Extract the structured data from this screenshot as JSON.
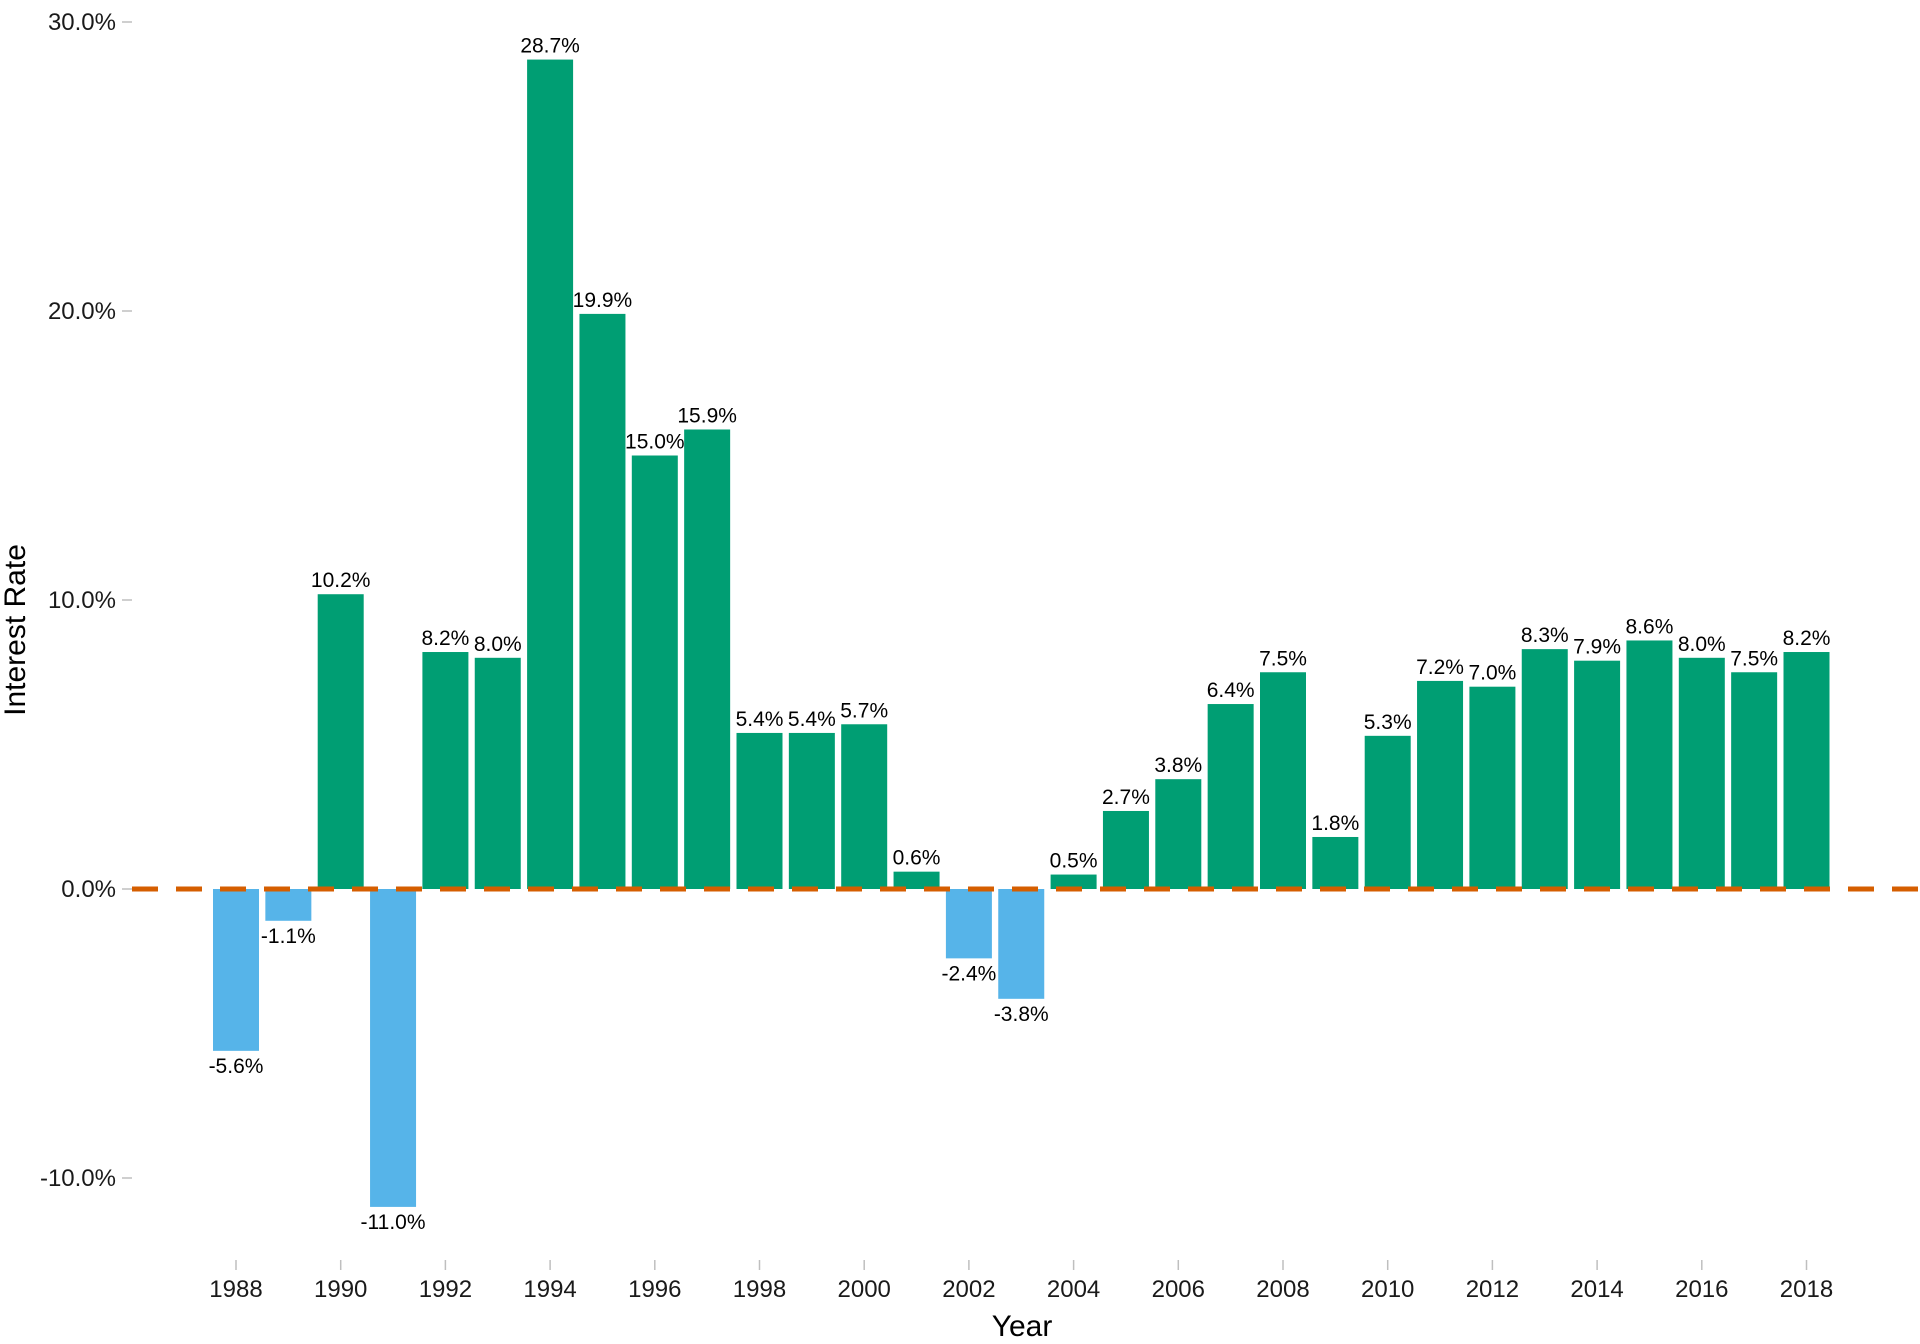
{
  "chart_data": {
    "type": "bar",
    "title": "",
    "xlabel": "Year",
    "ylabel": "Interest Rate",
    "ylim": [
      -13,
      30
    ],
    "yticks": [
      -10,
      0,
      10,
      20,
      30
    ],
    "ytick_labels": [
      "-10.0%",
      "0.0%",
      "10.0%",
      "20.0%",
      "30.0%"
    ],
    "xtick_years": [
      "1988",
      "1990",
      "1992",
      "1994",
      "1996",
      "1998",
      "2000",
      "2002",
      "2004",
      "2006",
      "2008",
      "2010",
      "2012",
      "2014",
      "2016",
      "2018"
    ],
    "categories": [
      1988,
      1989,
      1990,
      1991,
      1992,
      1993,
      1994,
      1995,
      1996,
      1997,
      1998,
      1999,
      2000,
      2001,
      2002,
      2003,
      2004,
      2005,
      2006,
      2007,
      2008,
      2009,
      2010,
      2011,
      2012,
      2013,
      2014,
      2015,
      2016,
      2017,
      2018
    ],
    "values": [
      -5.6,
      -1.1,
      10.2,
      -11.0,
      8.2,
      8.0,
      28.7,
      19.9,
      15.0,
      15.9,
      5.4,
      5.4,
      5.7,
      0.6,
      -2.4,
      -3.8,
      0.5,
      2.7,
      3.8,
      6.4,
      7.5,
      1.8,
      5.3,
      7.2,
      7.0,
      8.3,
      7.9,
      8.6,
      8.0,
      7.5,
      8.2
    ],
    "value_labels": [
      "-5.6%",
      "-1.1%",
      "10.2%",
      "-11.0%",
      "8.2%",
      "8.0%",
      "28.7%",
      "19.9%",
      "15.0%",
      "15.9%",
      "5.4%",
      "5.4%",
      "5.7%",
      "0.6%",
      "-2.4%",
      "-3.8%",
      "0.5%",
      "2.7%",
      "3.8%",
      "6.4%",
      "7.5%",
      "1.8%",
      "5.3%",
      "7.2%",
      "7.0%",
      "8.3%",
      "7.9%",
      "8.6%",
      "8.0%",
      "7.5%",
      "8.2%"
    ],
    "reference_line": {
      "y": 0,
      "style": "dashed",
      "color": "#d55e00"
    },
    "colors": {
      "positive": "#009e73",
      "negative": "#56b4e9"
    },
    "grid": false,
    "legend": "none"
  }
}
